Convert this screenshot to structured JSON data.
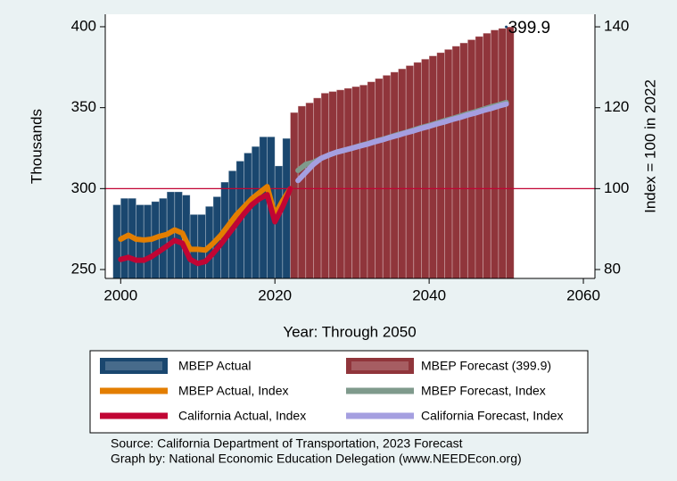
{
  "chart_data": {
    "type": "combo",
    "xlabel": "Year: Through 2050",
    "ylabel": "Thousands",
    "y2label": "Index = 100 in 2022",
    "xlim": [
      1998,
      2061.5
    ],
    "xticks": [
      2000,
      2020,
      2040,
      2060
    ],
    "ylim": [
      244.5,
      407.7
    ],
    "yticks": [
      250,
      300,
      350,
      400
    ],
    "y2lim": [
      77.8,
      143.1
    ],
    "y2ticks": [
      80,
      100,
      120,
      140
    ],
    "hline": {
      "value": 300,
      "color": "#c10534"
    },
    "annotation": {
      "x": 2050,
      "y": 399.9,
      "text": "399.9"
    },
    "series": [
      {
        "name": "MBEP Actual",
        "type": "bar",
        "color": "#1a476f",
        "x": [
          1999,
          2000,
          2001,
          2002,
          2003,
          2004,
          2005,
          2006,
          2007,
          2008,
          2009,
          2010,
          2011,
          2012,
          2013,
          2014,
          2015,
          2016,
          2017,
          2018,
          2019,
          2020,
          2021
        ],
        "values": [
          290,
          294,
          294,
          290,
          290,
          292,
          294,
          298,
          298,
          296,
          284,
          284,
          289,
          295,
          304,
          311,
          317,
          322,
          326,
          332,
          332,
          314,
          331
        ]
      },
      {
        "name": "MBEP Forecast (399.9)",
        "type": "bar",
        "color": "#90353b",
        "x": [
          2022,
          2023,
          2024,
          2025,
          2026,
          2027,
          2028,
          2029,
          2030,
          2031,
          2032,
          2033,
          2034,
          2035,
          2036,
          2037,
          2038,
          2039,
          2040,
          2041,
          2042,
          2043,
          2044,
          2045,
          2046,
          2047,
          2048,
          2049,
          2050
        ],
        "values": [
          347,
          351,
          353,
          356,
          359,
          360,
          361,
          362,
          363,
          364,
          366,
          368,
          370,
          372,
          374,
          376,
          378,
          380,
          382,
          384,
          386,
          388,
          390,
          392,
          394,
          396,
          398,
          399,
          399.9
        ]
      },
      {
        "name": "MBEP Actual, Index",
        "type": "line",
        "axis": "y2",
        "color": "#e37e00",
        "x": [
          2000,
          2001,
          2002,
          2003,
          2004,
          2005,
          2006,
          2007,
          2008,
          2009,
          2010,
          2011,
          2012,
          2013,
          2014,
          2015,
          2016,
          2017,
          2018,
          2019,
          2020,
          2021,
          2022
        ],
        "values": [
          87.5,
          88.5,
          87.5,
          87.3,
          87.5,
          88.2,
          88.7,
          89.8,
          89,
          85,
          85,
          84.8,
          86.5,
          88.5,
          91,
          93.5,
          95.5,
          97.5,
          99,
          100.5,
          93.5,
          97,
          100
        ]
      },
      {
        "name": "MBEP Forecast, Index",
        "type": "line",
        "axis": "y2",
        "color": "#7f9a8c",
        "x": [
          2023,
          2024,
          2025,
          2026,
          2027,
          2028,
          2029,
          2030,
          2031,
          2032,
          2033,
          2034,
          2035,
          2036,
          2037,
          2038,
          2039,
          2040,
          2041,
          2042,
          2043,
          2044,
          2045,
          2046,
          2047,
          2048,
          2049,
          2050
        ],
        "values": [
          104.5,
          106,
          106.5,
          107.5,
          108.3,
          109,
          109.5,
          110,
          110.6,
          111.1,
          111.7,
          112.2,
          112.8,
          113.4,
          113.9,
          114.5,
          115.1,
          115.6,
          116.2,
          116.8,
          117.3,
          117.9,
          118.5,
          119,
          119.6,
          120.2,
          120.7,
          121.3
        ]
      },
      {
        "name": "California Actual, Index",
        "type": "line",
        "axis": "y2",
        "color": "#c10534",
        "x": [
          2000,
          2001,
          2002,
          2003,
          2004,
          2005,
          2006,
          2007,
          2008,
          2009,
          2010,
          2011,
          2012,
          2013,
          2014,
          2015,
          2016,
          2017,
          2018,
          2019,
          2020,
          2021,
          2022
        ],
        "values": [
          82.5,
          83,
          82.3,
          82.3,
          83.2,
          84.5,
          85.8,
          87.2,
          86.5,
          82.5,
          81.5,
          82,
          84,
          86.3,
          88.8,
          91.3,
          93.8,
          96,
          97.5,
          98.5,
          91.8,
          95.5,
          100
        ]
      },
      {
        "name": "California Forecast, Index",
        "type": "line",
        "axis": "y2",
        "color": "#a59fe0",
        "x": [
          2023,
          2024,
          2025,
          2026,
          2027,
          2028,
          2029,
          2030,
          2031,
          2032,
          2033,
          2034,
          2035,
          2036,
          2037,
          2038,
          2039,
          2040,
          2041,
          2042,
          2043,
          2044,
          2045,
          2046,
          2047,
          2048,
          2049,
          2050
        ],
        "values": [
          102,
          104,
          106,
          107.5,
          108.3,
          109,
          109.5,
          110,
          110.5,
          111,
          111.6,
          112.1,
          112.7,
          113.2,
          113.8,
          114.3,
          114.9,
          115.4,
          116,
          116.5,
          117.1,
          117.6,
          118.2,
          118.7,
          119.3,
          119.8,
          120.4,
          120.9
        ]
      }
    ],
    "notes": [
      "Source: California Department of Transportation, 2023 Forecast",
      "Graph by: National Economic Education Delegation (www.NEEDEcon.org)"
    ]
  }
}
